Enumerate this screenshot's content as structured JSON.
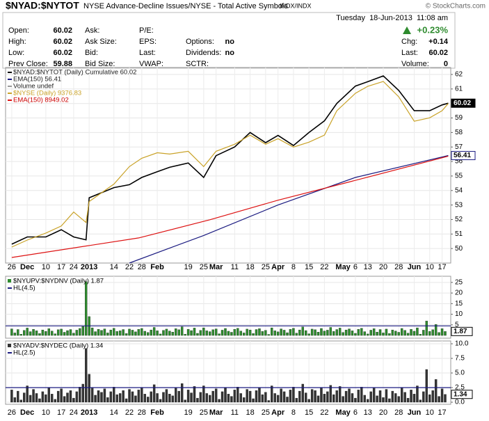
{
  "header": {
    "symbol": "$NYAD:$NYTOT",
    "description": "NYSE Advance-Decline Issues/NYSE - Total Active Symbols",
    "exchange": "INDX/INDX",
    "brand": "© StockCharts.com",
    "date": "Tuesday  18-Jun-2013  11:08 am",
    "change_pct": "+0.23%",
    "quote_rows": [
      [
        {
          "label": "Open:",
          "value": "60.02"
        },
        {
          "label": "Ask:"
        },
        {
          "label": "P/E:"
        }
      ],
      [
        {
          "label": "High:",
          "value": "60.02"
        },
        {
          "label": "Ask Size:"
        },
        {
          "label": "EPS:"
        },
        {
          "label": "Options:",
          "value": "no"
        }
      ],
      [
        {
          "label": "Low:",
          "value": "60.02"
        },
        {
          "label": "Bid:"
        },
        {
          "label": "Last:"
        },
        {
          "label": "Dividends:",
          "value": "no"
        }
      ],
      [
        {
          "label": "Prev Close:",
          "value": "59.88"
        },
        {
          "label": "Bid Size:"
        },
        {
          "label": "VWAP:"
        },
        {
          "label": "SCTR:"
        }
      ]
    ],
    "quote_right": [
      {
        "label": "Chg:",
        "value": "+0.14"
      },
      {
        "label": "Last:",
        "value": "60.02"
      },
      {
        "label": "Volume:",
        "value": "0"
      }
    ]
  },
  "chart_data": [
    {
      "type": "line",
      "annotations": [
        "Volume undef"
      ],
      "xlim": [
        -2,
        141.8
      ],
      "xticks": [
        {
          "value": 0,
          "label": "26"
        },
        {
          "value": 5,
          "label": "Dec"
        },
        {
          "value": 11,
          "label": "10"
        },
        {
          "value": 16,
          "label": "17"
        },
        {
          "value": 20,
          "label": "24"
        },
        {
          "value": 25,
          "label": "2013"
        },
        {
          "value": 33,
          "label": "14"
        },
        {
          "value": 38,
          "label": "22"
        },
        {
          "value": 42,
          "label": "28"
        },
        {
          "value": 47,
          "label": "Feb"
        },
        {
          "value": 57,
          "label": "19"
        },
        {
          "value": 62,
          "label": "25"
        },
        {
          "value": 66,
          "label": "Mar"
        },
        {
          "value": 72,
          "label": "11"
        },
        {
          "value": 77,
          "label": "18"
        },
        {
          "value": 82,
          "label": "25"
        },
        {
          "value": 86,
          "label": "Apr"
        },
        {
          "value": 91,
          "label": "8"
        },
        {
          "value": 96,
          "label": "15"
        },
        {
          "value": 101,
          "label": "22"
        },
        {
          "value": 107,
          "label": "May"
        },
        {
          "value": 111,
          "label": "6"
        },
        {
          "value": 115,
          "label": "13"
        },
        {
          "value": 120,
          "label": "20"
        },
        {
          "value": 125,
          "label": "28"
        },
        {
          "value": 130,
          "label": "Jun"
        },
        {
          "value": 135,
          "label": "10"
        },
        {
          "value": 139,
          "label": "17"
        }
      ],
      "ylim": [
        49,
        62.48
      ],
      "yticks": [
        50,
        51,
        52,
        53,
        54,
        55,
        56,
        57,
        58,
        59,
        60,
        61,
        62
      ],
      "y2lim": [
        8080,
        9670
      ],
      "grid": true,
      "series": [
        {
          "name": "$NYAD:$NYTOT (Daily) Cumulative 60.02",
          "color": "#000000",
          "x": [
            0,
            5,
            11,
            16,
            20,
            24,
            25,
            33,
            38,
            42,
            47,
            51,
            57,
            62,
            66,
            72,
            77,
            82,
            86,
            91,
            96,
            101,
            105,
            111,
            115,
            120,
            125,
            130,
            135,
            139,
            141
          ],
          "values": [
            50.3,
            50.8,
            50.8,
            51.3,
            50.8,
            50.6,
            53.5,
            54.2,
            54.4,
            54.9,
            55.3,
            55.6,
            55.9,
            54.9,
            56.4,
            57.0,
            58.0,
            57.3,
            57.8,
            57.1,
            58.0,
            58.8,
            60.0,
            61.2,
            61.5,
            61.9,
            60.9,
            59.5,
            59.5,
            59.9,
            60.02
          ]
        },
        {
          "name": "EMA(150) 56.41",
          "color": "#1a1a80",
          "x": [
            38,
            62,
            86,
            111,
            141
          ],
          "values": [
            49.0,
            50.9,
            53.0,
            54.9,
            56.41
          ]
        },
        {
          "name": "$NYSE (Daily) 9376.83",
          "color": "#c9a227",
          "axis": "y2",
          "x": [
            0,
            5,
            11,
            16,
            20,
            24,
            25,
            33,
            38,
            42,
            47,
            51,
            57,
            62,
            66,
            72,
            77,
            82,
            86,
            91,
            96,
            101,
            105,
            111,
            115,
            120,
            125,
            130,
            135,
            139,
            141
          ],
          "values": [
            8210,
            8267,
            8324,
            8381,
            8495,
            8410,
            8580,
            8722,
            8864,
            8932,
            8977,
            8966,
            8989,
            8864,
            8989,
            9046,
            9120,
            9046,
            9091,
            9023,
            9063,
            9120,
            9318,
            9460,
            9517,
            9557,
            9432,
            9233,
            9261,
            9318,
            9376.83
          ]
        },
        {
          "name": "EMA(150) 8949.02",
          "color": "#dd1111",
          "axis": "y2",
          "x": [
            0,
            41,
            64,
            86,
            109,
            141
          ],
          "values": [
            8125,
            8284,
            8432,
            8591,
            8739,
            8949.02
          ]
        }
      ]
    },
    {
      "type": "bar",
      "title": "$NYUPV:$NYDNV (Daily) 1.87",
      "reference_label": "HL(4.5)",
      "reference_line": 4.5,
      "color": "#2e8b2e",
      "xlim": [
        -2,
        141.8
      ],
      "ylim": [
        -1.3,
        27.9
      ],
      "yticks": [
        5,
        10,
        15,
        20,
        25
      ],
      "values": [
        3.1,
        1.2,
        2.8,
        0.6,
        2.4,
        3.5,
        1.8,
        2.9,
        2.2,
        0.9,
        2.6,
        1.9,
        3.2,
        2.1,
        0.8,
        2.7,
        3.0,
        1.5,
        2.3,
        2.8,
        1.1,
        2.5,
        3.3,
        4.2,
        25.4,
        8.9,
        3.6,
        1.8,
        2.9,
        2.4,
        3.1,
        1.2,
        2.6,
        3.4,
        1.9,
        2.2,
        2.8,
        0.9,
        3.0,
        2.5,
        1.7,
        2.9,
        3.3,
        2.0,
        1.4,
        2.6,
        3.8,
        2.2,
        0.7,
        2.4,
        3.0,
        2.1,
        1.6,
        3.2,
        2.7,
        4.1,
        0.6,
        2.9,
        2.3,
        3.5,
        1.0,
        2.4,
        3.6,
        2.2,
        1.8,
        2.7,
        3.1,
        0.8,
        2.5,
        3.3,
        2.0,
        1.5,
        2.9,
        3.4,
        2.1,
        1.2,
        3.0,
        2.6,
        0.9,
        2.8,
        3.2,
        1.9,
        2.4,
        0.5,
        3.6,
        2.2,
        1.7,
        3.1,
        2.5,
        1.3,
        2.9,
        3.4,
        1.1,
        2.6,
        4.0,
        2.3,
        0.8,
        3.0,
        2.7,
        1.6,
        3.3,
        2.1,
        2.5,
        3.8,
        1.9,
        2.8,
        3.5,
        1.4,
        2.6,
        3.1,
        2.2,
        1.0,
        2.9,
        3.4,
        1.8,
        0.7,
        2.5,
        3.2,
        1.6,
        2.8,
        1.2,
        3.0,
        0.9,
        2.6,
        2.1,
        1.5,
        3.3,
        2.4,
        1.1,
        2.9,
        2.0,
        3.6,
        0.6,
        2.5,
        6.8,
        1.9,
        2.7,
        5.2,
        1.4,
        3.2,
        1.87
      ]
    },
    {
      "type": "bar",
      "title": "$NYADV:$NYDEC (Daily) 1.34",
      "reference_label": "HL(2.5)",
      "reference_line": 2.5,
      "color": "#333333",
      "xlim": [
        -2,
        141.8
      ],
      "xticks": [
        {
          "value": 0,
          "label": "26"
        },
        {
          "value": 5,
          "label": "Dec"
        },
        {
          "value": 11,
          "label": "10"
        },
        {
          "value": 16,
          "label": "17"
        },
        {
          "value": 20,
          "label": "24"
        },
        {
          "value": 25,
          "label": "2013"
        },
        {
          "value": 33,
          "label": "14"
        },
        {
          "value": 38,
          "label": "22"
        },
        {
          "value": 42,
          "label": "28"
        },
        {
          "value": 47,
          "label": "Feb"
        },
        {
          "value": 57,
          "label": "19"
        },
        {
          "value": 62,
          "label": "25"
        },
        {
          "value": 66,
          "label": "Mar"
        },
        {
          "value": 72,
          "label": "11"
        },
        {
          "value": 77,
          "label": "18"
        },
        {
          "value": 82,
          "label": "25"
        },
        {
          "value": 86,
          "label": "Apr"
        },
        {
          "value": 91,
          "label": "8"
        },
        {
          "value": 96,
          "label": "15"
        },
        {
          "value": 101,
          "label": "22"
        },
        {
          "value": 107,
          "label": "May"
        },
        {
          "value": 111,
          "label": "6"
        },
        {
          "value": 115,
          "label": "13"
        },
        {
          "value": 120,
          "label": "20"
        },
        {
          "value": 125,
          "label": "28"
        },
        {
          "value": 130,
          "label": "Jun"
        },
        {
          "value": 135,
          "label": "10"
        },
        {
          "value": 139,
          "label": "17"
        }
      ],
      "ylim": [
        -0.36,
        10.48
      ],
      "yticks": [
        {
          "value": 0,
          "label": "0.0"
        },
        {
          "value": 2.5,
          "label": "2.5"
        },
        {
          "value": 5,
          "label": "5.0"
        },
        {
          "value": 7.5,
          "label": "7.5"
        },
        {
          "value": 10,
          "label": "10.0"
        }
      ],
      "values": [
        2.1,
        0.8,
        1.9,
        0.4,
        1.6,
        2.8,
        1.2,
        2.2,
        1.5,
        0.6,
        1.8,
        1.3,
        2.5,
        1.4,
        0.5,
        1.9,
        2.3,
        1.0,
        1.6,
        2.0,
        0.7,
        1.8,
        2.6,
        3.1,
        9.2,
        4.8,
        2.4,
        1.2,
        2.0,
        1.7,
        2.3,
        0.8,
        1.8,
        2.6,
        1.3,
        1.5,
        2.0,
        0.6,
        2.2,
        1.8,
        1.1,
        2.1,
        2.5,
        1.4,
        0.9,
        1.8,
        3.0,
        1.5,
        0.5,
        1.7,
        2.2,
        1.4,
        1.1,
        2.4,
        1.9,
        3.2,
        0.4,
        2.1,
        1.6,
        2.7,
        0.7,
        1.7,
        2.8,
        1.5,
        1.2,
        1.9,
        2.3,
        0.5,
        1.8,
        2.5,
        1.4,
        1.0,
        2.1,
        2.6,
        1.5,
        0.8,
        2.2,
        1.9,
        0.6,
        2.0,
        2.4,
        1.3,
        1.7,
        0.3,
        2.8,
        1.5,
        1.2,
        2.3,
        1.8,
        0.9,
        2.1,
        2.6,
        0.7,
        1.9,
        3.1,
        1.6,
        0.5,
        2.2,
        2.0,
        1.1,
        2.5,
        1.4,
        1.8,
        2.9,
        1.3,
        2.0,
        2.7,
        1.0,
        1.9,
        2.3,
        1.5,
        0.7,
        2.1,
        2.6,
        1.2,
        0.5,
        1.8,
        2.4,
        1.1,
        2.0,
        0.8,
        2.2,
        0.6,
        1.9,
        1.5,
        1.0,
        2.5,
        1.7,
        0.7,
        2.1,
        1.4,
        2.8,
        0.4,
        1.8,
        5.6,
        1.3,
        2.0,
        3.9,
        1.0,
        2.3,
        1.34
      ]
    }
  ]
}
